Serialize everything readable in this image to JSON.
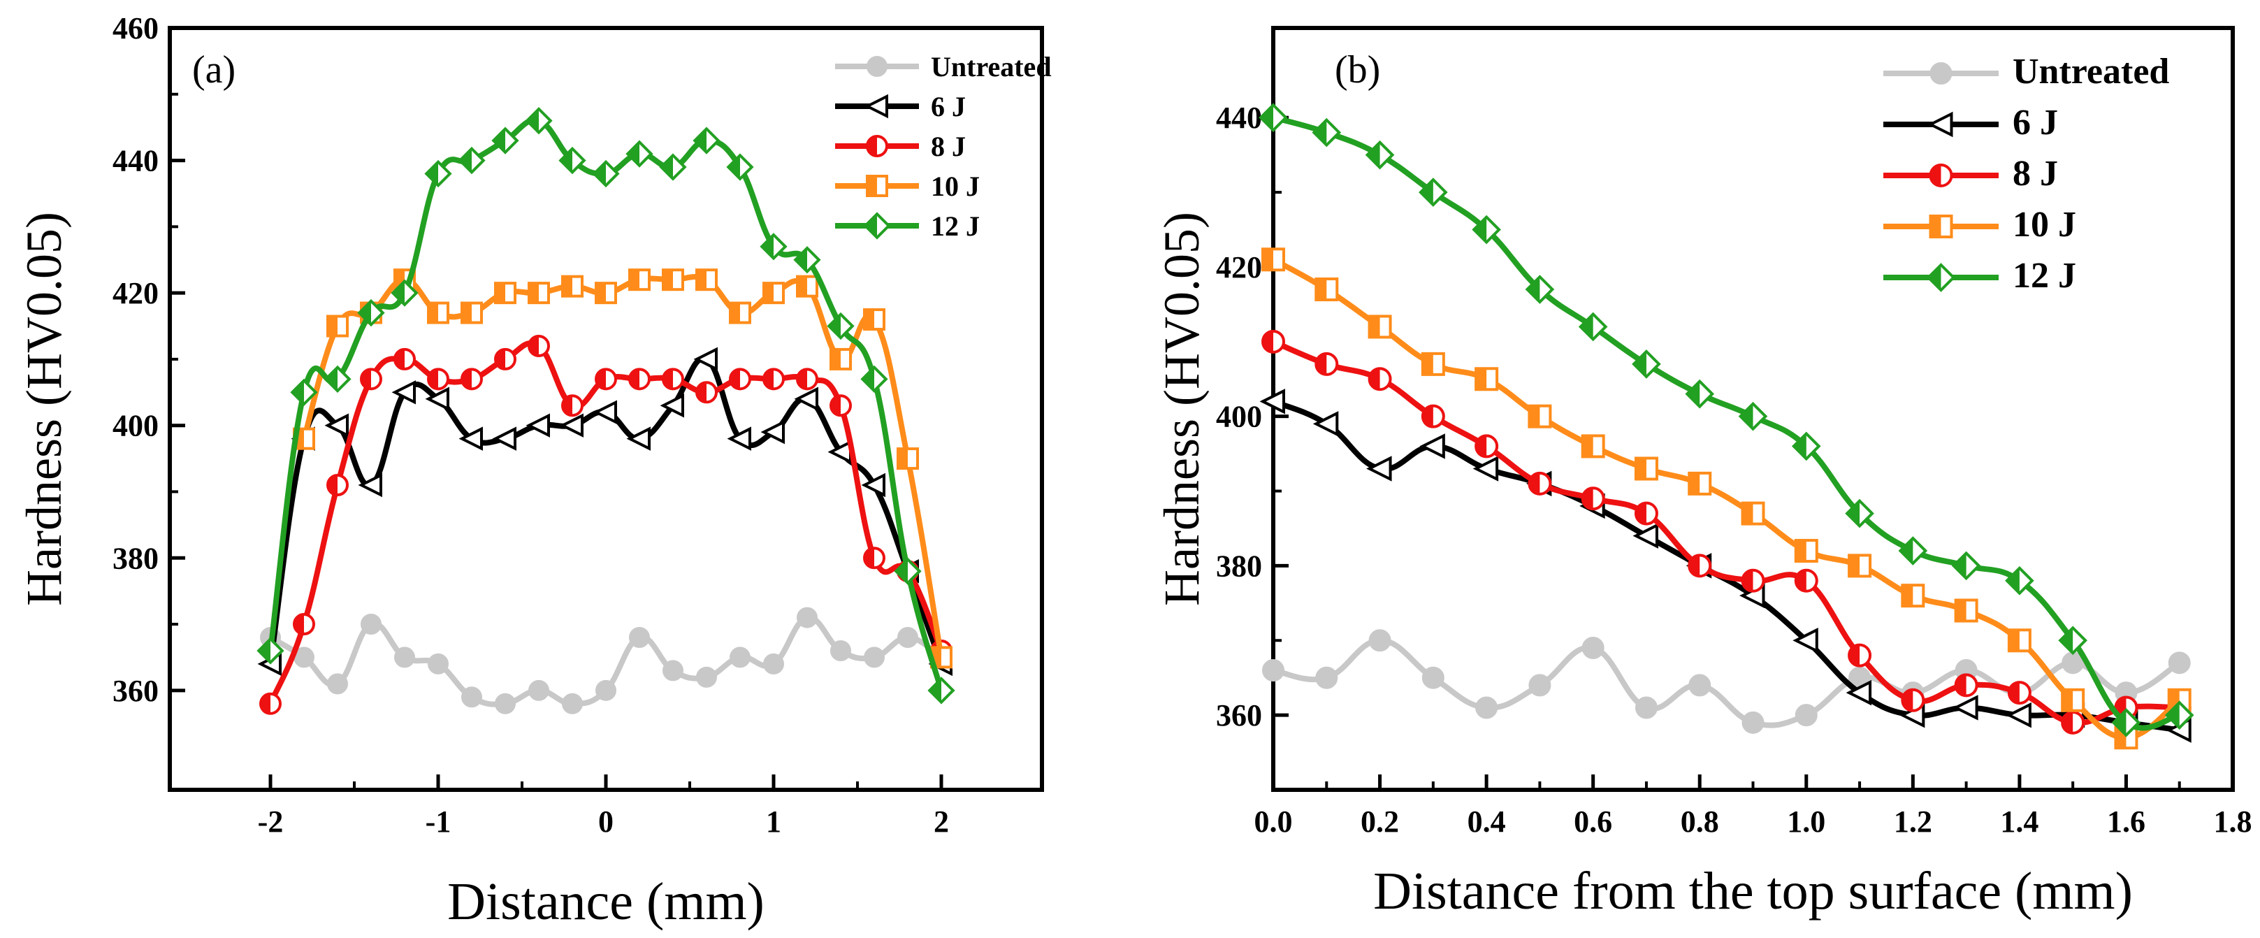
{
  "chart_data": [
    {
      "type": "line",
      "panel_label": "(a)",
      "xlabel": "Distance (mm)",
      "ylabel": "Hardness (HV0.05)",
      "xlim": [
        -2.6,
        2.6
      ],
      "ylim": [
        345,
        460
      ],
      "xticks": [
        -2,
        -1,
        0,
        1,
        2
      ],
      "xtick_labels": [
        "-2",
        "-1",
        "0",
        "1",
        "2"
      ],
      "yticks": [
        360,
        380,
        400,
        420,
        440,
        460
      ],
      "ytick_labels": [
        "360",
        "380",
        "400",
        "420",
        "440",
        "460"
      ],
      "legend_position": "top-right",
      "series": [
        {
          "name": "Untreated",
          "color": "#c8c8c8",
          "marker": "circle-filled",
          "x": [
            -2,
            -1.8,
            -1.6,
            -1.4,
            -1.2,
            -1,
            -0.8,
            -0.6,
            -0.4,
            -0.2,
            0,
            0.2,
            0.4,
            0.6,
            0.8,
            1,
            1.2,
            1.4,
            1.6,
            1.8,
            2
          ],
          "y": [
            368,
            365,
            361,
            370,
            365,
            364,
            359,
            358,
            360,
            358,
            360,
            368,
            363,
            362,
            365,
            364,
            371,
            366,
            365,
            368,
            365
          ]
        },
        {
          "name": "6 J",
          "color": "#000000",
          "marker": "triangle-left",
          "x": [
            -2,
            -1.8,
            -1.6,
            -1.4,
            -1.2,
            -1,
            -0.8,
            -0.6,
            -0.4,
            -0.2,
            0,
            0.2,
            0.4,
            0.6,
            0.8,
            1,
            1.2,
            1.4,
            1.6,
            1.8,
            2
          ],
          "y": [
            364,
            398,
            400,
            391,
            405,
            404,
            398,
            398,
            400,
            400,
            402,
            398,
            403,
            410,
            398,
            399,
            404,
            396,
            391,
            378,
            364
          ]
        },
        {
          "name": "8 J",
          "color": "#ee1111",
          "marker": "circle-half",
          "x": [
            -2,
            -1.8,
            -1.6,
            -1.4,
            -1.2,
            -1,
            -0.8,
            -0.6,
            -0.4,
            -0.2,
            0,
            0.2,
            0.4,
            0.6,
            0.8,
            1,
            1.2,
            1.4,
            1.6,
            1.8,
            2
          ],
          "y": [
            358,
            370,
            391,
            407,
            410,
            407,
            407,
            410,
            412,
            403,
            407,
            407,
            407,
            405,
            407,
            407,
            407,
            403,
            380,
            378,
            366
          ]
        },
        {
          "name": "10 J",
          "color": "#ff8c1a",
          "marker": "square-half",
          "x": [
            -1.8,
            -1.6,
            -1.4,
            -1.2,
            -1,
            -0.8,
            -0.6,
            -0.4,
            -0.2,
            0,
            0.2,
            0.4,
            0.6,
            0.8,
            1,
            1.2,
            1.4,
            1.6,
            1.8,
            2
          ],
          "y": [
            398,
            415,
            417,
            422,
            417,
            417,
            420,
            420,
            421,
            420,
            422,
            422,
            422,
            417,
            420,
            421,
            410,
            416,
            395,
            365
          ]
        },
        {
          "name": "12 J",
          "color": "#22a022",
          "marker": "diamond-half",
          "x": [
            -2,
            -1.8,
            -1.6,
            -1.4,
            -1.2,
            -1,
            -0.8,
            -0.6,
            -0.4,
            -0.2,
            0,
            0.2,
            0.4,
            0.6,
            0.8,
            1,
            1.2,
            1.4,
            1.6,
            1.8,
            2
          ],
          "y": [
            366,
            405,
            407,
            417,
            420,
            438,
            440,
            443,
            446,
            440,
            438,
            441,
            439,
            443,
            439,
            427,
            425,
            415,
            407,
            378,
            360
          ]
        }
      ]
    },
    {
      "type": "line",
      "panel_label": "(b)",
      "xlabel": "Distance from the top surface (mm)",
      "ylabel": "Hardness (HV0.05)",
      "xlim": [
        0,
        1.8
      ],
      "ylim": [
        350,
        452
      ],
      "xticks": [
        0,
        0.2,
        0.4,
        0.6,
        0.8,
        1.0,
        1.2,
        1.4,
        1.6,
        1.8
      ],
      "xtick_labels": [
        "0.0",
        "0.2",
        "0.4",
        "0.6",
        "0.8",
        "1.0",
        "1.2",
        "1.4",
        "1.6",
        "1.8"
      ],
      "yticks": [
        360,
        380,
        400,
        420,
        440
      ],
      "ytick_labels": [
        "360",
        "380",
        "400",
        "420",
        "440"
      ],
      "legend_position": "top-right",
      "series": [
        {
          "name": "Untreated",
          "color": "#c8c8c8",
          "marker": "circle-filled",
          "x": [
            0,
            0.1,
            0.2,
            0.3,
            0.4,
            0.5,
            0.6,
            0.7,
            0.8,
            0.9,
            1.0,
            1.1,
            1.2,
            1.3,
            1.4,
            1.5,
            1.6,
            1.7
          ],
          "y": [
            366,
            365,
            370,
            365,
            361,
            364,
            369,
            361,
            364,
            359,
            360,
            365,
            363,
            366,
            363,
            367,
            363,
            367
          ]
        },
        {
          "name": "6 J",
          "color": "#000000",
          "marker": "triangle-left",
          "x": [
            0,
            0.1,
            0.2,
            0.3,
            0.4,
            0.5,
            0.6,
            0.7,
            0.8,
            0.9,
            1.0,
            1.1,
            1.2,
            1.3,
            1.4,
            1.5,
            1.6,
            1.7
          ],
          "y": [
            402,
            399,
            393,
            396,
            393,
            391,
            388,
            384,
            380,
            376,
            370,
            363,
            360,
            361,
            360,
            360,
            359,
            358
          ]
        },
        {
          "name": "8 J",
          "color": "#ee1111",
          "marker": "circle-half",
          "x": [
            0,
            0.1,
            0.2,
            0.3,
            0.4,
            0.5,
            0.6,
            0.7,
            0.8,
            0.9,
            1.0,
            1.1,
            1.2,
            1.3,
            1.4,
            1.5,
            1.6,
            1.7
          ],
          "y": [
            410,
            407,
            405,
            400,
            396,
            391,
            389,
            387,
            380,
            378,
            378,
            368,
            362,
            364,
            363,
            359,
            361,
            361
          ]
        },
        {
          "name": "10 J",
          "color": "#ff8c1a",
          "marker": "square-half",
          "x": [
            0,
            0.1,
            0.2,
            0.3,
            0.4,
            0.5,
            0.6,
            0.7,
            0.8,
            0.9,
            1.0,
            1.1,
            1.2,
            1.3,
            1.4,
            1.5,
            1.6,
            1.7
          ],
          "y": [
            421,
            417,
            412,
            407,
            405,
            400,
            396,
            393,
            391,
            387,
            382,
            380,
            376,
            374,
            370,
            362,
            357,
            362
          ]
        },
        {
          "name": "12 J",
          "color": "#22a022",
          "marker": "diamond-half",
          "x": [
            0,
            0.1,
            0.2,
            0.3,
            0.4,
            0.5,
            0.6,
            0.7,
            0.8,
            0.9,
            1.0,
            1.1,
            1.2,
            1.3,
            1.4,
            1.5,
            1.6,
            1.7
          ],
          "y": [
            440,
            438,
            435,
            430,
            425,
            417,
            412,
            407,
            403,
            400,
            396,
            387,
            382,
            380,
            378,
            370,
            359,
            360
          ]
        }
      ]
    }
  ]
}
